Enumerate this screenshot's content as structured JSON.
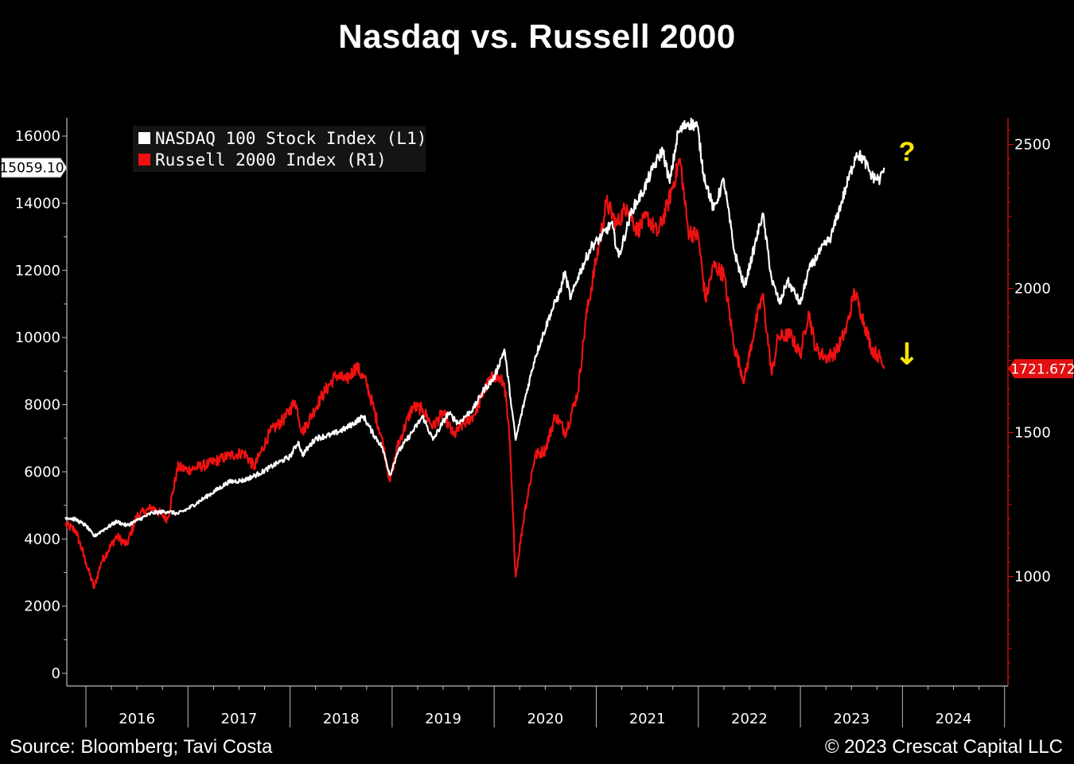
{
  "title": "Nasdaq vs. Russell 2000",
  "source": "Source: Bloomberg; Tavi Costa",
  "copyright": "© 2023 Crescat Capital LLC",
  "chart_data": {
    "type": "line",
    "left_axis": {
      "ticks": [
        0,
        2000,
        4000,
        6000,
        8000,
        10000,
        12000,
        14000,
        16000
      ],
      "range": [
        0,
        17000
      ]
    },
    "right_axis": {
      "ticks": [
        1000,
        1500,
        2000,
        2500
      ],
      "range": [
        600,
        2600
      ]
    },
    "x_ticks": [
      "2016",
      "2017",
      "2018",
      "2019",
      "2020",
      "2021",
      "2022",
      "2023",
      "2024"
    ],
    "x_range": [
      2015.8,
      2024.95
    ],
    "series": [
      {
        "name": "NASDAQ 100 Stock Index  (L1)",
        "axis": "left",
        "color": "#ffffff",
        "last_value_label": "15059.10",
        "points": [
          [
            2015.8,
            4650
          ],
          [
            2015.9,
            4580
          ],
          [
            2016.0,
            4400
          ],
          [
            2016.08,
            4080
          ],
          [
            2016.15,
            4230
          ],
          [
            2016.3,
            4520
          ],
          [
            2016.4,
            4400
          ],
          [
            2016.5,
            4550
          ],
          [
            2016.65,
            4780
          ],
          [
            2016.8,
            4820
          ],
          [
            2016.9,
            4750
          ],
          [
            2017.0,
            4900
          ],
          [
            2017.2,
            5300
          ],
          [
            2017.4,
            5700
          ],
          [
            2017.55,
            5750
          ],
          [
            2017.7,
            5950
          ],
          [
            2017.9,
            6300
          ],
          [
            2018.0,
            6450
          ],
          [
            2018.08,
            6900
          ],
          [
            2018.12,
            6500
          ],
          [
            2018.25,
            7000
          ],
          [
            2018.4,
            7100
          ],
          [
            2018.55,
            7300
          ],
          [
            2018.72,
            7650
          ],
          [
            2018.8,
            7200
          ],
          [
            2018.9,
            6750
          ],
          [
            2018.98,
            5900
          ],
          [
            2019.05,
            6550
          ],
          [
            2019.2,
            7200
          ],
          [
            2019.3,
            7650
          ],
          [
            2019.4,
            6950
          ],
          [
            2019.55,
            7750
          ],
          [
            2019.65,
            7450
          ],
          [
            2019.8,
            7900
          ],
          [
            2019.9,
            8450
          ],
          [
            2020.0,
            8800
          ],
          [
            2020.1,
            9650
          ],
          [
            2020.16,
            8200
          ],
          [
            2020.21,
            6950
          ],
          [
            2020.3,
            8150
          ],
          [
            2020.4,
            9400
          ],
          [
            2020.55,
            10700
          ],
          [
            2020.65,
            11400
          ],
          [
            2020.69,
            11950
          ],
          [
            2020.75,
            11150
          ],
          [
            2020.82,
            11800
          ],
          [
            2020.95,
            12700
          ],
          [
            2021.05,
            13000
          ],
          [
            2021.15,
            13400
          ],
          [
            2021.22,
            12400
          ],
          [
            2021.35,
            13800
          ],
          [
            2021.45,
            14300
          ],
          [
            2021.55,
            15000
          ],
          [
            2021.65,
            15600
          ],
          [
            2021.72,
            14600
          ],
          [
            2021.8,
            16100
          ],
          [
            2021.9,
            16400
          ],
          [
            2021.99,
            16300
          ],
          [
            2022.05,
            14900
          ],
          [
            2022.15,
            13800
          ],
          [
            2022.25,
            14700
          ],
          [
            2022.35,
            12600
          ],
          [
            2022.45,
            11500
          ],
          [
            2022.55,
            12700
          ],
          [
            2022.63,
            13700
          ],
          [
            2022.72,
            11700
          ],
          [
            2022.8,
            11000
          ],
          [
            2022.87,
            11700
          ],
          [
            2022.93,
            11400
          ],
          [
            2023.0,
            11000
          ],
          [
            2023.08,
            12000
          ],
          [
            2023.2,
            12600
          ],
          [
            2023.3,
            13000
          ],
          [
            2023.45,
            14500
          ],
          [
            2023.55,
            15500
          ],
          [
            2023.62,
            15300
          ],
          [
            2023.7,
            14800
          ],
          [
            2023.78,
            14700
          ],
          [
            2023.82,
            15059
          ]
        ]
      },
      {
        "name": "Russell 2000 Index  (R1)",
        "axis": "right",
        "color": "#ee1111",
        "last_value_label": "1721.672",
        "points": [
          [
            2015.8,
            1180
          ],
          [
            2015.9,
            1160
          ],
          [
            2016.0,
            1050
          ],
          [
            2016.08,
            960
          ],
          [
            2016.15,
            1050
          ],
          [
            2016.3,
            1140
          ],
          [
            2016.4,
            1110
          ],
          [
            2016.5,
            1210
          ],
          [
            2016.65,
            1240
          ],
          [
            2016.8,
            1200
          ],
          [
            2016.9,
            1380
          ],
          [
            2017.0,
            1370
          ],
          [
            2017.2,
            1390
          ],
          [
            2017.4,
            1420
          ],
          [
            2017.55,
            1430
          ],
          [
            2017.65,
            1380
          ],
          [
            2017.8,
            1500
          ],
          [
            2017.95,
            1550
          ],
          [
            2018.05,
            1610
          ],
          [
            2018.12,
            1500
          ],
          [
            2018.3,
            1620
          ],
          [
            2018.45,
            1700
          ],
          [
            2018.55,
            1680
          ],
          [
            2018.65,
            1730
          ],
          [
            2018.75,
            1670
          ],
          [
            2018.9,
            1480
          ],
          [
            2018.98,
            1330
          ],
          [
            2019.05,
            1450
          ],
          [
            2019.2,
            1590
          ],
          [
            2019.3,
            1580
          ],
          [
            2019.4,
            1520
          ],
          [
            2019.5,
            1570
          ],
          [
            2019.6,
            1490
          ],
          [
            2019.7,
            1530
          ],
          [
            2019.8,
            1560
          ],
          [
            2019.92,
            1660
          ],
          [
            2020.0,
            1700
          ],
          [
            2020.1,
            1670
          ],
          [
            2020.15,
            1480
          ],
          [
            2020.21,
            1000
          ],
          [
            2020.3,
            1230
          ],
          [
            2020.4,
            1420
          ],
          [
            2020.5,
            1440
          ],
          [
            2020.6,
            1560
          ],
          [
            2020.7,
            1500
          ],
          [
            2020.82,
            1640
          ],
          [
            2020.9,
            1900
          ],
          [
            2021.0,
            2100
          ],
          [
            2021.1,
            2300
          ],
          [
            2021.2,
            2220
          ],
          [
            2021.3,
            2290
          ],
          [
            2021.4,
            2200
          ],
          [
            2021.5,
            2250
          ],
          [
            2021.6,
            2190
          ],
          [
            2021.7,
            2290
          ],
          [
            2021.82,
            2450
          ],
          [
            2021.9,
            2200
          ],
          [
            2022.0,
            2180
          ],
          [
            2022.07,
            1960
          ],
          [
            2022.15,
            2080
          ],
          [
            2022.25,
            2050
          ],
          [
            2022.35,
            1800
          ],
          [
            2022.45,
            1680
          ],
          [
            2022.55,
            1860
          ],
          [
            2022.63,
            1980
          ],
          [
            2022.72,
            1700
          ],
          [
            2022.78,
            1830
          ],
          [
            2022.9,
            1840
          ],
          [
            2023.0,
            1770
          ],
          [
            2023.08,
            1920
          ],
          [
            2023.15,
            1790
          ],
          [
            2023.25,
            1760
          ],
          [
            2023.35,
            1780
          ],
          [
            2023.45,
            1860
          ],
          [
            2023.53,
            1990
          ],
          [
            2023.6,
            1910
          ],
          [
            2023.7,
            1790
          ],
          [
            2023.78,
            1760
          ],
          [
            2023.82,
            1721.672
          ]
        ]
      }
    ],
    "annotations": [
      "?",
      "↓"
    ]
  }
}
